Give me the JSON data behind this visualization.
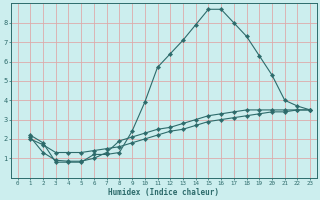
{
  "xlabel": "Humidex (Indice chaleur)",
  "bg_color": "#cceeee",
  "grid_color": "#ddaaaa",
  "line_color": "#2d6b6b",
  "xlim": [
    -0.5,
    23.5
  ],
  "ylim": [
    0,
    9
  ],
  "xticks": [
    0,
    1,
    2,
    3,
    4,
    5,
    6,
    7,
    8,
    9,
    10,
    11,
    12,
    13,
    14,
    15,
    16,
    17,
    18,
    19,
    20,
    21,
    22,
    23
  ],
  "yticks": [
    1,
    2,
    3,
    4,
    5,
    6,
    7,
    8
  ],
  "line1_x": [
    1,
    2,
    3,
    4,
    5,
    6,
    7,
    8,
    9,
    10,
    11,
    12,
    13,
    14,
    15,
    16,
    17,
    18,
    19,
    20,
    21,
    22,
    23
  ],
  "line1_y": [
    2.2,
    1.8,
    0.8,
    0.8,
    0.8,
    1.2,
    1.2,
    1.3,
    2.4,
    3.9,
    5.7,
    6.4,
    7.1,
    7.9,
    8.7,
    8.7,
    8.0,
    7.3,
    6.3,
    5.3,
    4.0,
    3.7,
    3.5
  ],
  "line2_x": [
    1,
    2,
    3,
    4,
    5,
    6,
    7,
    8,
    9,
    10,
    11,
    12,
    13,
    14,
    15,
    16,
    17,
    18,
    19,
    20,
    21,
    22,
    23
  ],
  "line2_y": [
    2.1,
    1.3,
    0.9,
    0.85,
    0.85,
    1.0,
    1.3,
    1.9,
    2.1,
    2.3,
    2.5,
    2.6,
    2.8,
    3.0,
    3.2,
    3.3,
    3.4,
    3.5,
    3.5,
    3.5,
    3.5,
    3.5,
    3.5
  ],
  "line3_x": [
    1,
    2,
    3,
    4,
    5,
    6,
    7,
    8,
    9,
    10,
    11,
    12,
    13,
    14,
    15,
    16,
    17,
    18,
    19,
    20,
    21,
    22,
    23
  ],
  "line3_y": [
    2.0,
    1.7,
    1.3,
    1.3,
    1.3,
    1.4,
    1.5,
    1.6,
    1.8,
    2.0,
    2.2,
    2.4,
    2.5,
    2.7,
    2.9,
    3.0,
    3.1,
    3.2,
    3.3,
    3.4,
    3.4,
    3.5,
    3.5
  ]
}
